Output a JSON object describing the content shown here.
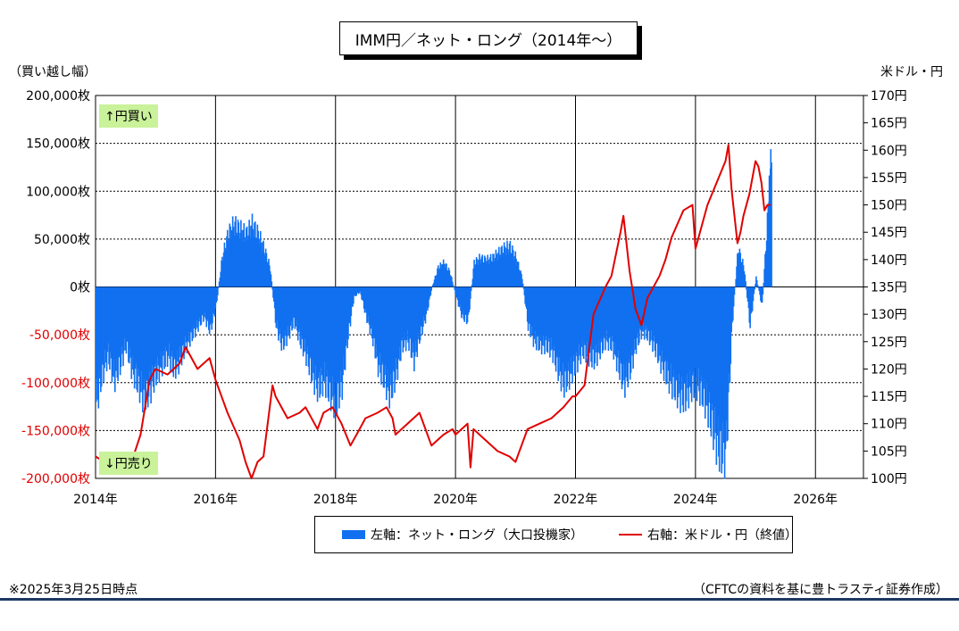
{
  "title": "IMM円／ネット・ロング（2014年～）",
  "left_axis_unit": "（買い越し幅）",
  "right_axis_unit": "米ドル・円",
  "tags": {
    "top": "↑円買い",
    "bottom": "↓円売り"
  },
  "legend": {
    "bar": "左軸：ネット・ロング（大口投機家）",
    "line": "右軸：米ドル・円（終値）"
  },
  "footnote_left": "※2025年3月25日時点",
  "footnote_right": "（CFTCの資料を基に豊トラスティ証券作成）",
  "colors": {
    "bar": "#1070f0",
    "line": "#e00000",
    "negative_label": "#e00000",
    "tag_bg": "#c9f29a",
    "rule": "#1f3864"
  },
  "chart_data": {
    "type": "bar+line",
    "xlim": [
      2014,
      2026.8
    ],
    "x_ticks": [
      2014,
      2016,
      2018,
      2020,
      2022,
      2024,
      2026
    ],
    "x_tick_labels": [
      "2014年",
      "2016年",
      "2018年",
      "2020年",
      "2022年",
      "2024年",
      "2026年"
    ],
    "left_axis": {
      "ylim": [
        -200000,
        200000
      ],
      "ticks": [
        200000,
        150000,
        100000,
        50000,
        0,
        -50000,
        -100000,
        -150000,
        -200000
      ],
      "tick_labels": [
        "200,000枚",
        "150,000枚",
        "100,000枚",
        "50,000枚",
        "0枚",
        "-50,000枚",
        "-100,000枚",
        "-150,000枚",
        "-200,000枚"
      ]
    },
    "right_axis": {
      "ylim": [
        100,
        170
      ],
      "ticks": [
        170,
        165,
        160,
        155,
        150,
        145,
        140,
        135,
        130,
        125,
        120,
        115,
        110,
        105,
        100
      ],
      "tick_labels": [
        "170円",
        "165円",
        "160円",
        "155円",
        "150円",
        "145円",
        "140円",
        "135円",
        "130円",
        "125円",
        "120円",
        "115円",
        "110円",
        "105円",
        "100円"
      ]
    },
    "grid": true,
    "series": [
      {
        "name": "左軸：ネット・ロング（大口投機家）",
        "type": "bar",
        "axis": "left",
        "points": [
          [
            2014.0,
            -120000
          ],
          [
            2014.1,
            -90000
          ],
          [
            2014.2,
            -70000
          ],
          [
            2014.3,
            -95000
          ],
          [
            2014.4,
            -80000
          ],
          [
            2014.5,
            -60000
          ],
          [
            2014.6,
            -85000
          ],
          [
            2014.7,
            -100000
          ],
          [
            2014.8,
            -115000
          ],
          [
            2014.9,
            -105000
          ],
          [
            2015.0,
            -90000
          ],
          [
            2015.1,
            -80000
          ],
          [
            2015.2,
            -70000
          ],
          [
            2015.3,
            -85000
          ],
          [
            2015.4,
            -75000
          ],
          [
            2015.5,
            -60000
          ],
          [
            2015.6,
            -50000
          ],
          [
            2015.7,
            -40000
          ],
          [
            2015.8,
            -30000
          ],
          [
            2015.9,
            -45000
          ],
          [
            2016.0,
            -20000
          ],
          [
            2016.1,
            30000
          ],
          [
            2016.2,
            55000
          ],
          [
            2016.3,
            65000
          ],
          [
            2016.4,
            60000
          ],
          [
            2016.5,
            55000
          ],
          [
            2016.6,
            65000
          ],
          [
            2016.7,
            55000
          ],
          [
            2016.8,
            40000
          ],
          [
            2016.9,
            20000
          ],
          [
            2017.0,
            -40000
          ],
          [
            2017.1,
            -60000
          ],
          [
            2017.2,
            -50000
          ],
          [
            2017.3,
            -35000
          ],
          [
            2017.4,
            -55000
          ],
          [
            2017.5,
            -70000
          ],
          [
            2017.6,
            -90000
          ],
          [
            2017.7,
            -105000
          ],
          [
            2017.8,
            -95000
          ],
          [
            2017.9,
            -110000
          ],
          [
            2018.0,
            -120000
          ],
          [
            2018.1,
            -100000
          ],
          [
            2018.2,
            -50000
          ],
          [
            2018.3,
            -10000
          ],
          [
            2018.4,
            -5000
          ],
          [
            2018.5,
            -30000
          ],
          [
            2018.6,
            -50000
          ],
          [
            2018.7,
            -80000
          ],
          [
            2018.8,
            -95000
          ],
          [
            2018.9,
            -110000
          ],
          [
            2019.0,
            -90000
          ],
          [
            2019.1,
            -60000
          ],
          [
            2019.2,
            -55000
          ],
          [
            2019.3,
            -75000
          ],
          [
            2019.4,
            -50000
          ],
          [
            2019.5,
            -30000
          ],
          [
            2019.6,
            0
          ],
          [
            2019.7,
            20000
          ],
          [
            2019.8,
            25000
          ],
          [
            2019.9,
            15000
          ],
          [
            2020.0,
            -10000
          ],
          [
            2020.1,
            -30000
          ],
          [
            2020.2,
            -35000
          ],
          [
            2020.3,
            25000
          ],
          [
            2020.4,
            30000
          ],
          [
            2020.5,
            28000
          ],
          [
            2020.6,
            30000
          ],
          [
            2020.7,
            35000
          ],
          [
            2020.8,
            40000
          ],
          [
            2020.9,
            42000
          ],
          [
            2021.0,
            30000
          ],
          [
            2021.1,
            10000
          ],
          [
            2021.2,
            -40000
          ],
          [
            2021.3,
            -55000
          ],
          [
            2021.4,
            -60000
          ],
          [
            2021.5,
            -60000
          ],
          [
            2021.6,
            -65000
          ],
          [
            2021.7,
            -85000
          ],
          [
            2021.8,
            -100000
          ],
          [
            2021.9,
            -90000
          ],
          [
            2022.0,
            -80000
          ],
          [
            2022.1,
            -65000
          ],
          [
            2022.2,
            -70000
          ],
          [
            2022.3,
            -75000
          ],
          [
            2022.4,
            -65000
          ],
          [
            2022.5,
            -55000
          ],
          [
            2022.6,
            -60000
          ],
          [
            2022.7,
            -80000
          ],
          [
            2022.8,
            -100000
          ],
          [
            2022.9,
            -85000
          ],
          [
            2023.0,
            -60000
          ],
          [
            2023.1,
            -45000
          ],
          [
            2023.2,
            -50000
          ],
          [
            2023.3,
            -60000
          ],
          [
            2023.4,
            -75000
          ],
          [
            2023.5,
            -90000
          ],
          [
            2023.6,
            -100000
          ],
          [
            2023.7,
            -110000
          ],
          [
            2023.8,
            -115000
          ],
          [
            2023.9,
            -105000
          ],
          [
            2024.0,
            -100000
          ],
          [
            2024.1,
            -110000
          ],
          [
            2024.2,
            -125000
          ],
          [
            2024.3,
            -150000
          ],
          [
            2024.4,
            -170000
          ],
          [
            2024.5,
            -170000
          ],
          [
            2024.6,
            -40000
          ],
          [
            2024.7,
            40000
          ],
          [
            2024.8,
            20000
          ],
          [
            2024.9,
            -40000
          ],
          [
            2025.0,
            10000
          ],
          [
            2025.1,
            -20000
          ],
          [
            2025.2,
            80000
          ],
          [
            2025.25,
            130000
          ]
        ]
      },
      {
        "name": "右軸：米ドル・円（終値）",
        "type": "line",
        "axis": "right",
        "points": [
          [
            2014.0,
            104
          ],
          [
            2014.3,
            102
          ],
          [
            2014.6,
            103
          ],
          [
            2014.75,
            108
          ],
          [
            2014.9,
            118
          ],
          [
            2015.0,
            120
          ],
          [
            2015.2,
            119
          ],
          [
            2015.4,
            121
          ],
          [
            2015.5,
            124
          ],
          [
            2015.7,
            120
          ],
          [
            2015.9,
            122
          ],
          [
            2016.0,
            118
          ],
          [
            2016.2,
            112
          ],
          [
            2016.4,
            107
          ],
          [
            2016.5,
            103
          ],
          [
            2016.6,
            100
          ],
          [
            2016.7,
            103
          ],
          [
            2016.8,
            104
          ],
          [
            2016.95,
            117
          ],
          [
            2017.0,
            115
          ],
          [
            2017.2,
            111
          ],
          [
            2017.4,
            112
          ],
          [
            2017.5,
            113
          ],
          [
            2017.7,
            109
          ],
          [
            2017.8,
            112
          ],
          [
            2017.95,
            113
          ],
          [
            2018.1,
            110
          ],
          [
            2018.25,
            106
          ],
          [
            2018.35,
            108
          ],
          [
            2018.5,
            111
          ],
          [
            2018.7,
            112
          ],
          [
            2018.85,
            113
          ],
          [
            2018.95,
            111
          ],
          [
            2019.0,
            108
          ],
          [
            2019.2,
            110
          ],
          [
            2019.4,
            112
          ],
          [
            2019.5,
            109
          ],
          [
            2019.6,
            106
          ],
          [
            2019.8,
            108
          ],
          [
            2019.95,
            109
          ],
          [
            2020.0,
            108
          ],
          [
            2020.2,
            110
          ],
          [
            2020.25,
            102
          ],
          [
            2020.3,
            109
          ],
          [
            2020.5,
            107
          ],
          [
            2020.7,
            105
          ],
          [
            2020.9,
            104
          ],
          [
            2021.0,
            103
          ],
          [
            2021.2,
            109
          ],
          [
            2021.4,
            110
          ],
          [
            2021.6,
            111
          ],
          [
            2021.8,
            113
          ],
          [
            2021.95,
            115
          ],
          [
            2022.0,
            115
          ],
          [
            2022.15,
            117
          ],
          [
            2022.3,
            130
          ],
          [
            2022.5,
            135
          ],
          [
            2022.6,
            137
          ],
          [
            2022.75,
            145
          ],
          [
            2022.8,
            148
          ],
          [
            2022.9,
            138
          ],
          [
            2023.0,
            131
          ],
          [
            2023.1,
            128
          ],
          [
            2023.2,
            133
          ],
          [
            2023.4,
            137
          ],
          [
            2023.5,
            140
          ],
          [
            2023.6,
            144
          ],
          [
            2023.8,
            149
          ],
          [
            2023.95,
            150
          ],
          [
            2024.0,
            142
          ],
          [
            2024.2,
            150
          ],
          [
            2024.35,
            154
          ],
          [
            2024.5,
            158
          ],
          [
            2024.55,
            161
          ],
          [
            2024.6,
            153
          ],
          [
            2024.7,
            143
          ],
          [
            2024.75,
            145
          ],
          [
            2024.8,
            148
          ],
          [
            2024.9,
            152
          ],
          [
            2024.95,
            155
          ],
          [
            2025.0,
            158
          ],
          [
            2025.05,
            157
          ],
          [
            2025.1,
            154
          ],
          [
            2025.15,
            149
          ],
          [
            2025.2,
            150
          ],
          [
            2025.25,
            150
          ]
        ]
      }
    ]
  }
}
